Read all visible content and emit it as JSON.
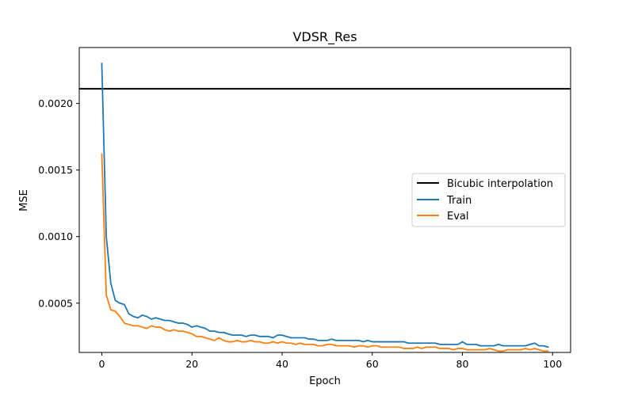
{
  "chart_data": {
    "type": "line",
    "title": "VDSR_Res",
    "xlabel": "Epoch",
    "ylabel": "MSE",
    "xlim": [
      -5,
      104
    ],
    "ylim": [
      0.00013,
      0.00242
    ],
    "xticks": [
      0,
      20,
      40,
      60,
      80,
      100
    ],
    "yticks": [
      0.0005,
      0.001,
      0.0015,
      0.002
    ],
    "xtick_labels": [
      "0",
      "20",
      "40",
      "60",
      "80",
      "100"
    ],
    "ytick_labels": [
      "0.0005",
      "0.0010",
      "0.0015",
      "0.0020"
    ],
    "grid": false,
    "legend_position": "center-right",
    "hlines": [
      {
        "name": "Bicubic interpolation",
        "y": 0.00211,
        "color": "#000000"
      }
    ],
    "series": [
      {
        "name": "Train",
        "color": "#1f77b4",
        "x": [
          0,
          1,
          2,
          3,
          4,
          5,
          6,
          7,
          8,
          9,
          10,
          11,
          12,
          13,
          14,
          15,
          16,
          17,
          18,
          19,
          20,
          21,
          22,
          23,
          24,
          25,
          26,
          27,
          28,
          29,
          30,
          31,
          32,
          33,
          34,
          35,
          36,
          37,
          38,
          39,
          40,
          41,
          42,
          43,
          44,
          45,
          46,
          47,
          48,
          49,
          50,
          51,
          52,
          53,
          54,
          55,
          56,
          57,
          58,
          59,
          60,
          61,
          62,
          63,
          64,
          65,
          66,
          67,
          68,
          69,
          70,
          71,
          72,
          73,
          74,
          75,
          76,
          77,
          78,
          79,
          80,
          81,
          82,
          83,
          84,
          85,
          86,
          87,
          88,
          89,
          90,
          91,
          92,
          93,
          94,
          95,
          96,
          97,
          98,
          99
        ],
        "values": [
          0.0023,
          0.001,
          0.00065,
          0.00052,
          0.0005,
          0.00049,
          0.00042,
          0.0004,
          0.00039,
          0.00041,
          0.0004,
          0.00038,
          0.00039,
          0.00038,
          0.00037,
          0.00037,
          0.00036,
          0.00035,
          0.00035,
          0.00034,
          0.00032,
          0.00033,
          0.00032,
          0.00031,
          0.00029,
          0.00029,
          0.00028,
          0.00028,
          0.00027,
          0.00026,
          0.00026,
          0.00026,
          0.00025,
          0.00026,
          0.00026,
          0.00025,
          0.00025,
          0.00025,
          0.00024,
          0.00026,
          0.00026,
          0.00025,
          0.00024,
          0.00024,
          0.00024,
          0.00024,
          0.00023,
          0.00023,
          0.00022,
          0.00022,
          0.00022,
          0.00023,
          0.00022,
          0.00022,
          0.00022,
          0.00022,
          0.00022,
          0.00022,
          0.00021,
          0.00022,
          0.00021,
          0.00021,
          0.00021,
          0.00021,
          0.00021,
          0.00021,
          0.00021,
          0.00021,
          0.0002,
          0.0002,
          0.0002,
          0.0002,
          0.0002,
          0.0002,
          0.0002,
          0.00019,
          0.00019,
          0.00019,
          0.00019,
          0.00019,
          0.00021,
          0.00019,
          0.00019,
          0.00019,
          0.00018,
          0.00018,
          0.00018,
          0.00018,
          0.00019,
          0.00018,
          0.00018,
          0.00018,
          0.00018,
          0.00018,
          0.00018,
          0.00019,
          0.0002,
          0.00018,
          0.00018,
          0.00017
        ]
      },
      {
        "name": "Eval",
        "color": "#ff7f0e",
        "x": [
          0,
          1,
          2,
          3,
          4,
          5,
          6,
          7,
          8,
          9,
          10,
          11,
          12,
          13,
          14,
          15,
          16,
          17,
          18,
          19,
          20,
          21,
          22,
          23,
          24,
          25,
          26,
          27,
          28,
          29,
          30,
          31,
          32,
          33,
          34,
          35,
          36,
          37,
          38,
          39,
          40,
          41,
          42,
          43,
          44,
          45,
          46,
          47,
          48,
          49,
          50,
          51,
          52,
          53,
          54,
          55,
          56,
          57,
          58,
          59,
          60,
          61,
          62,
          63,
          64,
          65,
          66,
          67,
          68,
          69,
          70,
          71,
          72,
          73,
          74,
          75,
          76,
          77,
          78,
          79,
          80,
          81,
          82,
          83,
          84,
          85,
          86,
          87,
          88,
          89,
          90,
          91,
          92,
          93,
          94,
          95,
          96,
          97,
          98,
          99
        ],
        "values": [
          0.00162,
          0.00056,
          0.00045,
          0.00044,
          0.0004,
          0.00035,
          0.00034,
          0.00033,
          0.00033,
          0.00032,
          0.00031,
          0.00033,
          0.00032,
          0.00032,
          0.0003,
          0.00029,
          0.0003,
          0.00029,
          0.00029,
          0.00028,
          0.00027,
          0.00025,
          0.00025,
          0.00024,
          0.00023,
          0.00022,
          0.00024,
          0.00022,
          0.00021,
          0.00021,
          0.00022,
          0.00021,
          0.00021,
          0.00022,
          0.00021,
          0.00021,
          0.0002,
          0.0002,
          0.00021,
          0.0002,
          0.00021,
          0.0002,
          0.0002,
          0.00019,
          0.0002,
          0.00019,
          0.00019,
          0.00019,
          0.00018,
          0.00018,
          0.00019,
          0.00019,
          0.00018,
          0.00018,
          0.00018,
          0.00018,
          0.00017,
          0.00018,
          0.00018,
          0.00017,
          0.00018,
          0.00018,
          0.00017,
          0.00017,
          0.00017,
          0.00017,
          0.00017,
          0.00016,
          0.00016,
          0.00016,
          0.00017,
          0.00016,
          0.00017,
          0.00017,
          0.00017,
          0.00016,
          0.00016,
          0.00016,
          0.00015,
          0.00016,
          0.00016,
          0.00015,
          0.00015,
          0.00015,
          0.00015,
          0.00015,
          0.00016,
          0.00015,
          0.00014,
          0.00014,
          0.00015,
          0.00015,
          0.00015,
          0.00015,
          0.00016,
          0.00015,
          0.00016,
          0.00015,
          0.00014,
          0.00014
        ]
      }
    ]
  }
}
